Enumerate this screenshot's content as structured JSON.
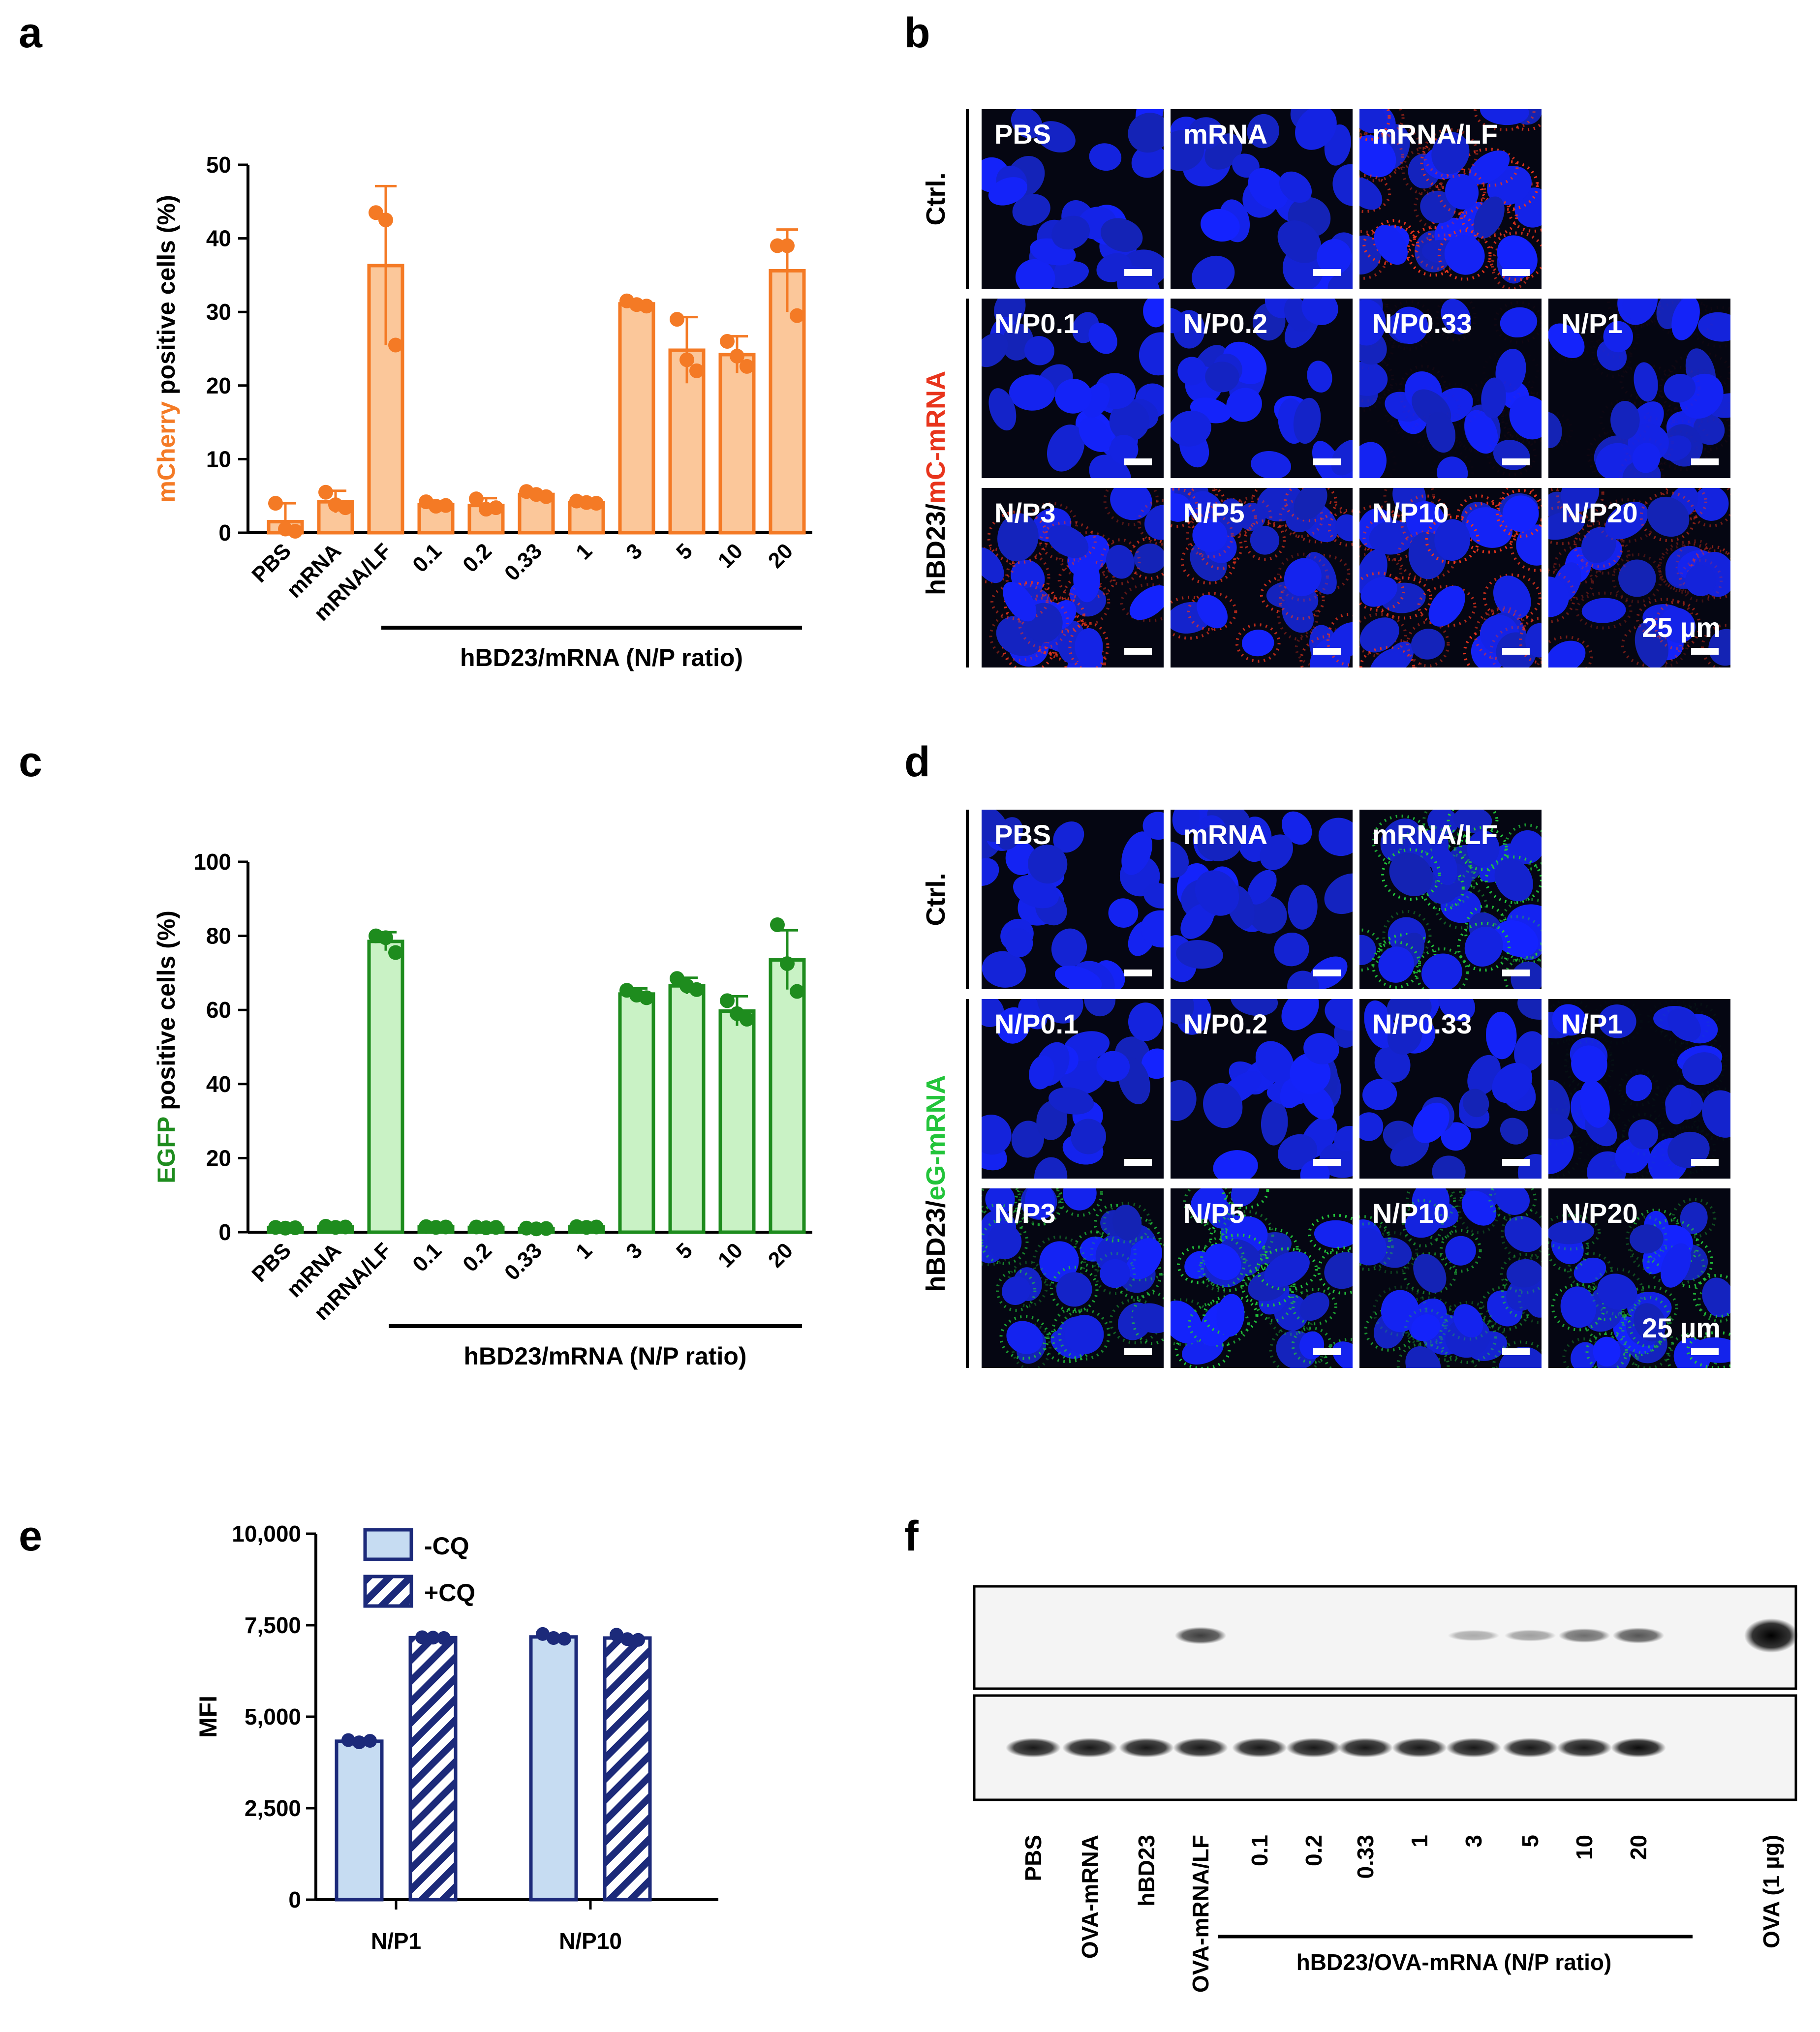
{
  "colors": {
    "orange": "#F47A25",
    "orange_fill": "#FBC79A",
    "green": "#1E8C1E",
    "green_fill": "#C9F2C5",
    "navy": "#1C2A7A",
    "light_blue": "#C6DCF2",
    "nucleus_blue": "#1530E8"
  },
  "panel_letters": [
    "a",
    "b",
    "c",
    "d",
    "e",
    "f"
  ],
  "chart_data": [
    {
      "id": "a",
      "type": "bar",
      "title": "",
      "ylabel_colored": "mCherry",
      "ylabel_rest": " positive cells (%)",
      "xlabel": "hBD23/mRNA (N/P ratio)",
      "categories": [
        "PBS",
        "mRNA",
        "mRNA/LF",
        "0.1",
        "0.2",
        "0.33",
        "1",
        "3",
        "5",
        "10",
        "20"
      ],
      "values": [
        1.5,
        4.2,
        36.3,
        3.8,
        3.7,
        5.2,
        4.1,
        31.1,
        24.8,
        24.2,
        35.6
      ],
      "errors": [
        2.5,
        1.5,
        10.8,
        0.5,
        1.0,
        0.4,
        0.3,
        0.4,
        4.5,
        2.5,
        5.6
      ],
      "points": [
        [
          4,
          0.5,
          0.2
        ],
        [
          5.5,
          3.8,
          3.4
        ],
        [
          43.5,
          42.5,
          25.5
        ],
        [
          4.2,
          3.6,
          3.7
        ],
        [
          4.6,
          3.2,
          3.4
        ],
        [
          5.6,
          5.2,
          4.9
        ],
        [
          4.3,
          4.1,
          4.0
        ],
        [
          31.5,
          31.0,
          30.8
        ],
        [
          29.0,
          23.5,
          22.0
        ],
        [
          26.0,
          24.0,
          22.6
        ],
        [
          39.0,
          39.0,
          29.5
        ]
      ],
      "ylim": [
        0,
        50
      ],
      "yticks": [
        "0",
        "10",
        "20",
        "30",
        "40",
        "50"
      ],
      "ytick_values": [
        0,
        10,
        20,
        30,
        40,
        50
      ]
    },
    {
      "id": "c",
      "type": "bar",
      "title": "",
      "ylabel_colored": "EGFP",
      "ylabel_rest": " positive cells (%)",
      "xlabel": "hBD23/mRNA (N/P ratio)",
      "categories": [
        "PBS",
        "mRNA",
        "mRNA/LF",
        "0.1",
        "0.2",
        "0.33",
        "1",
        "3",
        "5",
        "10",
        "20"
      ],
      "values": [
        1.2,
        1.4,
        78.5,
        1.4,
        1.3,
        1.0,
        1.4,
        64.3,
        66.5,
        59.7,
        73.5
      ],
      "errors": [
        0.3,
        0.4,
        2.5,
        0.3,
        0.3,
        0.3,
        0.3,
        1.5,
        2.2,
        4.0,
        8.0
      ],
      "points": [
        [
          1.3,
          1.1,
          1.2
        ],
        [
          1.6,
          1.3,
          1.4
        ],
        [
          80.0,
          79.5,
          75.5
        ],
        [
          1.5,
          1.3,
          1.4
        ],
        [
          1.4,
          1.2,
          1.3
        ],
        [
          1.1,
          0.9,
          1.0
        ],
        [
          1.5,
          1.3,
          1.4
        ],
        [
          65.3,
          64.0,
          63.3
        ],
        [
          68.5,
          66.5,
          65.5
        ],
        [
          62.5,
          59.0,
          57.5
        ],
        [
          83.0,
          72.5,
          65.0
        ]
      ],
      "ylim": [
        0,
        100
      ],
      "yticks": [
        "0",
        "20",
        "40",
        "60",
        "80",
        "100"
      ],
      "ytick_values": [
        0,
        20,
        40,
        60,
        80,
        100
      ]
    },
    {
      "id": "e",
      "type": "bar",
      "title": "",
      "ylabel": "MFI",
      "categories": [
        "N/P1",
        "N/P10"
      ],
      "series": [
        {
          "name": "-CQ",
          "values": [
            4330,
            7180
          ],
          "points": [
            [
              4360,
              4300,
              4340
            ],
            [
              7260,
              7150,
              7130
            ]
          ]
        },
        {
          "name": "+CQ",
          "values": [
            7160,
            7150
          ],
          "points": [
            [
              7170,
              7160,
              7150
            ],
            [
              7240,
              7120,
              7100
            ]
          ]
        }
      ],
      "ylim": [
        0,
        10000
      ],
      "yticks": [
        "0",
        "2,500",
        "5,000",
        "7,500",
        "10,000"
      ],
      "ytick_values": [
        0,
        2500,
        5000,
        7500,
        10000
      ]
    }
  ],
  "panel_b": {
    "ctrl_label": "Ctrl.",
    "group_label_prefix": "hBD23/",
    "group_label_colored": "mC-mRNA",
    "ctrl_tiles": [
      "PBS",
      "mRNA",
      "mRNA/LF"
    ],
    "np_tiles": [
      "N/P0.1",
      "N/P0.2",
      "N/P0.33",
      "N/P1",
      "N/P3",
      "N/P5",
      "N/P10",
      "N/P20"
    ],
    "scale": "25 µm"
  },
  "panel_d": {
    "ctrl_label": "Ctrl.",
    "group_label_prefix": "hBD23/",
    "group_label_colored": "eG-mRNA",
    "ctrl_tiles": [
      "PBS",
      "mRNA",
      "mRNA/LF"
    ],
    "np_tiles": [
      "N/P0.1",
      "N/P0.2",
      "N/P0.33",
      "N/P1",
      "N/P3",
      "N/P5",
      "N/P10",
      "N/P20"
    ],
    "scale": "25 µm"
  },
  "panel_f": {
    "lane_labels": [
      "PBS",
      "OVA-mRNA",
      "hBD23",
      "OVA-mRNA/LF",
      "0.1",
      "0.2",
      "0.33",
      "1",
      "3",
      "5",
      "10",
      "20",
      "OVA (1 µg)"
    ],
    "group_label": "hBD23/OVA-mRNA (N/P ratio)",
    "top_band_intensity": [
      0,
      0,
      0,
      0.75,
      0,
      0,
      0,
      0,
      0.3,
      0.35,
      0.55,
      0.65,
      1.0
    ],
    "bottom_band_intensity": [
      0.9,
      0.9,
      0.9,
      0.9,
      0.9,
      0.9,
      0.9,
      0.9,
      0.9,
      0.9,
      0.9,
      0.95,
      0
    ]
  }
}
